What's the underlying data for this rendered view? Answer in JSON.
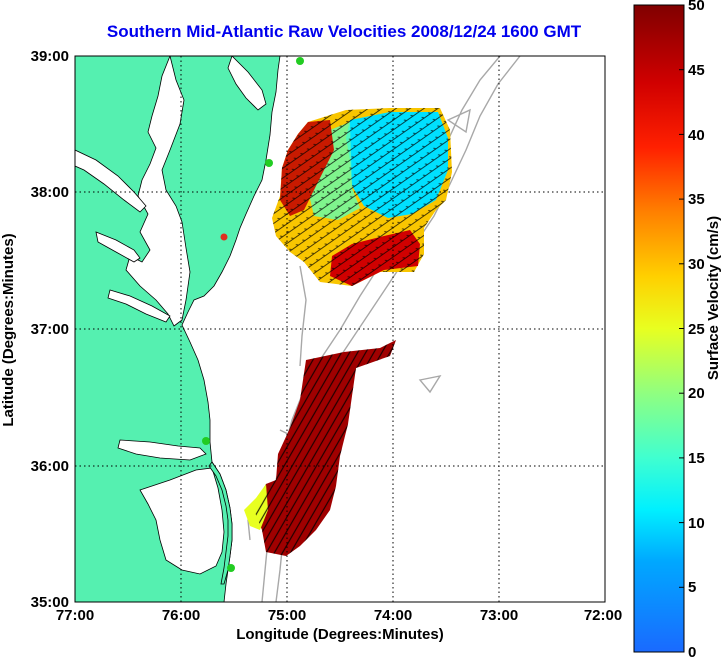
{
  "title": "Southern Mid-Atlantic Raw Velocities 2008/12/24 1600 GMT",
  "xlabel": "Longitude (Degrees:Minutes)",
  "ylabel": "Latitude (Degrees:Minutes)",
  "x_ticks": [
    "77:00",
    "76:00",
    "75:00",
    "74:00",
    "73:00",
    "72:00"
  ],
  "y_ticks": [
    "39:00",
    "38:00",
    "37:00",
    "36:00",
    "35:00"
  ],
  "colorbar": {
    "label": "Surface Velocity (cm/s)",
    "ticks": [
      "0",
      "5",
      "10",
      "15",
      "20",
      "25",
      "30",
      "35",
      "40",
      "45",
      "50"
    ],
    "min": 0,
    "max": 50
  },
  "colors": {
    "land": "#55f0b0",
    "ocean": "#ffffff",
    "title": "#0000ee",
    "bathymetry": "#a8a8a8",
    "station": "#22cc22",
    "station_alt": "#e03020"
  },
  "chart_data": {
    "type": "heatmap",
    "title": "Southern Mid-Atlantic Raw Velocities 2008/12/24 1600 GMT",
    "xlabel": "Longitude (Degrees:Minutes)",
    "ylabel": "Latitude (Degrees:Minutes)",
    "xlim": [
      "77:00",
      "72:00"
    ],
    "ylim": [
      "35:00",
      "39:00"
    ],
    "grid": true,
    "colorbar_range": [
      0,
      50
    ],
    "colorbar_label": "Surface Velocity (cm/s)"
  }
}
